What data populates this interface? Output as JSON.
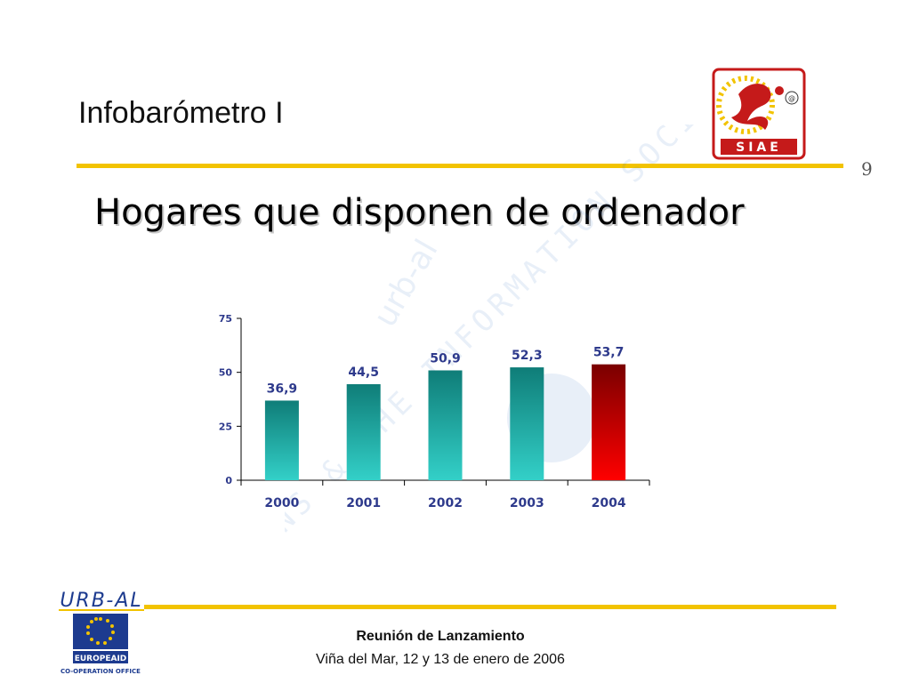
{
  "header": {
    "section_title": "Infobarómetro I",
    "page_number": "9",
    "logo_text": "SIAE",
    "logo_symbol": "@"
  },
  "main": {
    "title": "Hogares que disponen de ordenador"
  },
  "watermark": {
    "line1": "TOWNS & THE INFORMATION SOCIETY",
    "brand": "urb-al"
  },
  "chart_data": {
    "type": "bar",
    "categories": [
      "2000",
      "2001",
      "2002",
      "2003",
      "2004"
    ],
    "values": [
      36.9,
      44.5,
      50.9,
      52.3,
      53.7
    ],
    "value_labels": [
      "36,9",
      "44,5",
      "50,9",
      "52,3",
      "53,7"
    ],
    "ylim": [
      0,
      75
    ],
    "yticks": [
      "0",
      "25",
      "50",
      "75"
    ],
    "ytick_values": [
      0,
      25,
      50,
      75
    ],
    "colors": {
      "teal_top": "#0f7d78",
      "teal_bottom": "#33d0c8",
      "red_top": "#7a0000",
      "red_bottom": "#ff0000",
      "label": "#2e3a8c",
      "axis": "#000000"
    },
    "highlight_index": 4,
    "title": "",
    "xlabel": "",
    "ylabel": ""
  },
  "footer": {
    "title": "Reunión de Lanzamiento",
    "date": "Viña del Mar, 12 y 13 de enero de 2006",
    "logo_top": "URB-AL",
    "logo_line1": "EUROPEAID",
    "logo_line2": "CO-OPERATION OFFICE"
  }
}
